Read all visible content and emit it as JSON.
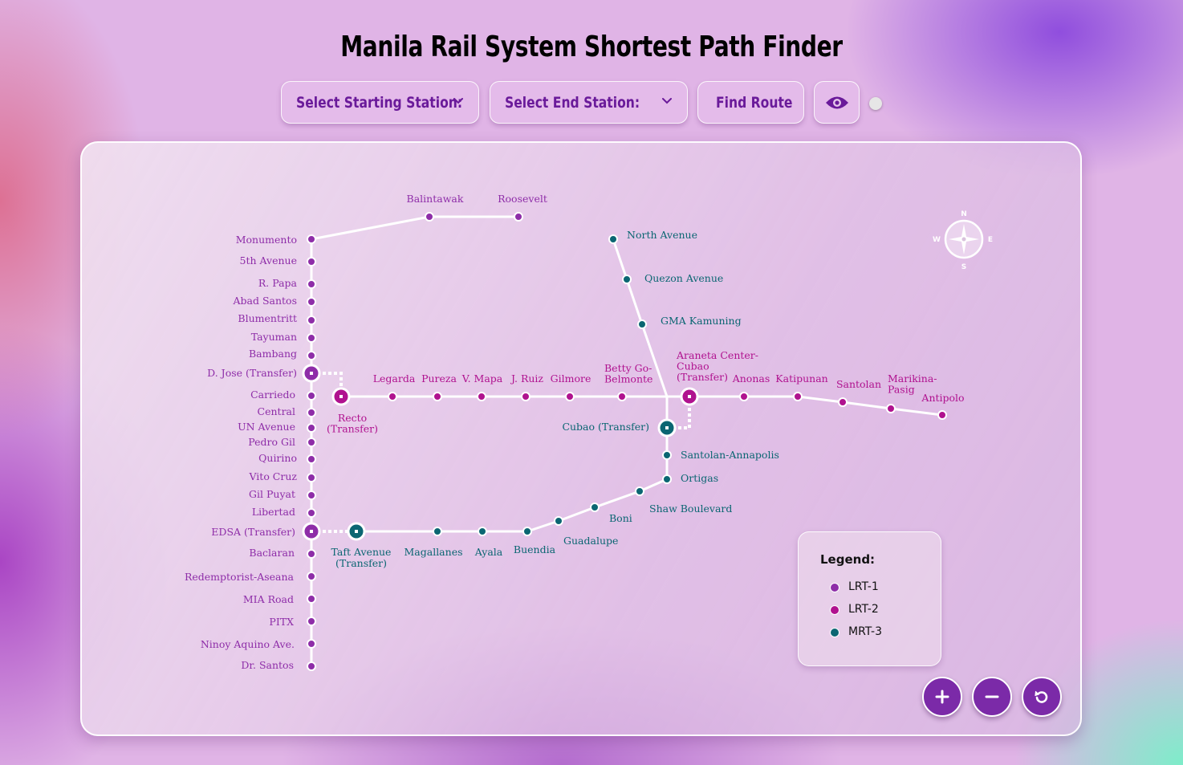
{
  "title": "Manila Rail System Shortest Path Finder",
  "controls": {
    "start_label": "Select Starting Station:",
    "end_label": "Select End Station:",
    "find_label": "Find Route"
  },
  "colors": {
    "lrt1": "#8e2da8",
    "lrt2": "#b0128f",
    "mrt3": "#0b6672",
    "line": "#ffffff"
  },
  "icons": {
    "chevron": "chevron-down-icon",
    "route": "route-icon",
    "eye": "eye-icon",
    "compass": "compass-icon",
    "zoom_in": "plus-icon",
    "zoom_out": "minus-icon",
    "reset": "reset-icon"
  },
  "compass": {
    "n": "N",
    "s": "S",
    "e": "E",
    "w": "W"
  },
  "legend": {
    "title": "Legend:",
    "items": [
      "LRT-1",
      "LRT-2",
      "MRT-3"
    ]
  },
  "stations": {
    "lrt1": [
      "Roosevelt",
      "Balintawak",
      "Monumento",
      "5th Avenue",
      "R. Papa",
      "Abad Santos",
      "Blumentritt",
      "Tayuman",
      "Bambang",
      "D. Jose (Transfer)",
      "Carriedo",
      "Central",
      "UN Avenue",
      "Pedro Gil",
      "Quirino",
      "Vito Cruz",
      "Gil Puyat",
      "Libertad",
      "EDSA (Transfer)",
      "Baclaran",
      "Redemptorist-Aseana",
      "MIA Road",
      "PITX",
      "Ninoy Aquino Ave.",
      "Dr. Santos"
    ],
    "lrt2": [
      "Recto (Transfer)",
      "Legarda",
      "Pureza",
      "V. Mapa",
      "J. Ruiz",
      "Gilmore",
      "Betty Go-Belmonte",
      "Araneta Center-Cubao (Transfer)",
      "Anonas",
      "Katipunan",
      "Santolan",
      "Marikina-Pasig",
      "Antipolo"
    ],
    "mrt3": [
      "North Avenue",
      "Quezon Avenue",
      "GMA Kamuning",
      "Cubao (Transfer)",
      "Santolan-Annapolis",
      "Ortigas",
      "Shaw Boulevard",
      "Boni",
      "Guadalupe",
      "Buendia",
      "Ayala",
      "Magallanes",
      "Taft Avenue (Transfer)"
    ]
  }
}
